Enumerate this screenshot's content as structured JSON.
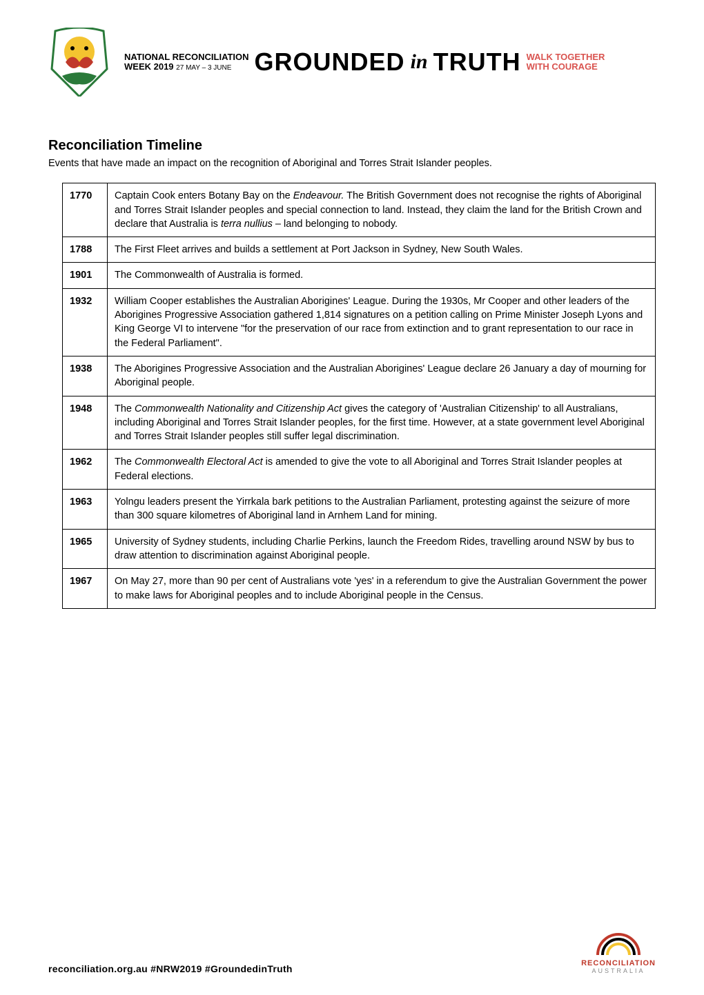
{
  "header": {
    "banner_left_line1": "NATIONAL RECONCILIATION",
    "banner_left_line2": "WEEK 2019",
    "banner_left_dates": "27 MAY – 3 JUNE",
    "banner_grounded": "GROUNDED",
    "banner_in": "in",
    "banner_truth": "TRUTH",
    "banner_right_line1": "WALK TOGETHER",
    "banner_right_line2": "WITH COURAGE"
  },
  "title": "Reconciliation Timeline",
  "subtitle": "Events that have made an impact on the recognition of Aboriginal and Torres Strait Islander peoples.",
  "rows": [
    {
      "year": "1770",
      "text": "Captain Cook enters Botany Bay on the <span class=\"italic\">Endeavour.</span> The British Government does not recognise the rights of Aboriginal and Torres Strait Islander peoples and special connection to land. Instead, they claim the land for the British Crown and declare that Australia is <span class=\"italic\">terra nullius</span> – land belonging to nobody."
    },
    {
      "year": "1788",
      "text": "The First Fleet arrives and builds a settlement at Port Jackson in Sydney, New South Wales."
    },
    {
      "year": "1901",
      "text": "The Commonwealth of Australia is formed."
    },
    {
      "year": "1932",
      "text": "William Cooper establishes the Australian Aborigines' League. During the 1930s, Mr Cooper and other leaders of the Aborigines Progressive Association gathered 1,814 signatures on a petition calling on Prime Minister Joseph Lyons and King George VI to intervene \"for the preservation of our race from extinction and to grant representation to our race in the Federal Parliament\"."
    },
    {
      "year": "1938",
      "text": "The Aborigines Progressive Association and the Australian Aborigines' League declare 26 January a day of mourning for Aboriginal people."
    },
    {
      "year": "1948",
      "text": "The <span class=\"italic\">Commonwealth Nationality and Citizenship Act</span> gives the category of 'Australian Citizenship' to all Australians, including Aboriginal and Torres Strait Islander peoples, for the first time. However, at a state government level Aboriginal and Torres Strait Islander peoples still suffer legal discrimination."
    },
    {
      "year": "1962",
      "text": "The <span class=\"italic\">Commonwealth Electoral Act</span> is amended to give the vote to all Aboriginal and Torres Strait Islander peoples at Federal elections."
    },
    {
      "year": "1963",
      "text": "Yolngu leaders present the Yirrkala bark petitions to the Australian Parliament, protesting against the seizure of more than 300 square kilometres of Aboriginal land in Arnhem Land for mining."
    },
    {
      "year": "1965",
      "text": "University of Sydney students, including Charlie Perkins, launch the Freedom Rides, travelling around NSW by bus to draw attention to discrimination against Aboriginal people."
    },
    {
      "year": "1967",
      "text": "On May 27, more than 90 per cent of Australians vote 'yes' in a referendum to give the Australian Government the power to make laws for Aboriginal peoples and to include Aboriginal people in the Census."
    }
  ],
  "footer": {
    "left": "reconciliation.org.au   #NRW2019   #GroundedinTruth",
    "logo_main": "RECONCILIATION",
    "logo_sub": "AUSTRALIA"
  },
  "colors": {
    "text": "#000000",
    "red": "#d9534f",
    "logo_red": "#c0392b",
    "logo_grey": "#888888",
    "border": "#000000",
    "bg": "#ffffff"
  }
}
